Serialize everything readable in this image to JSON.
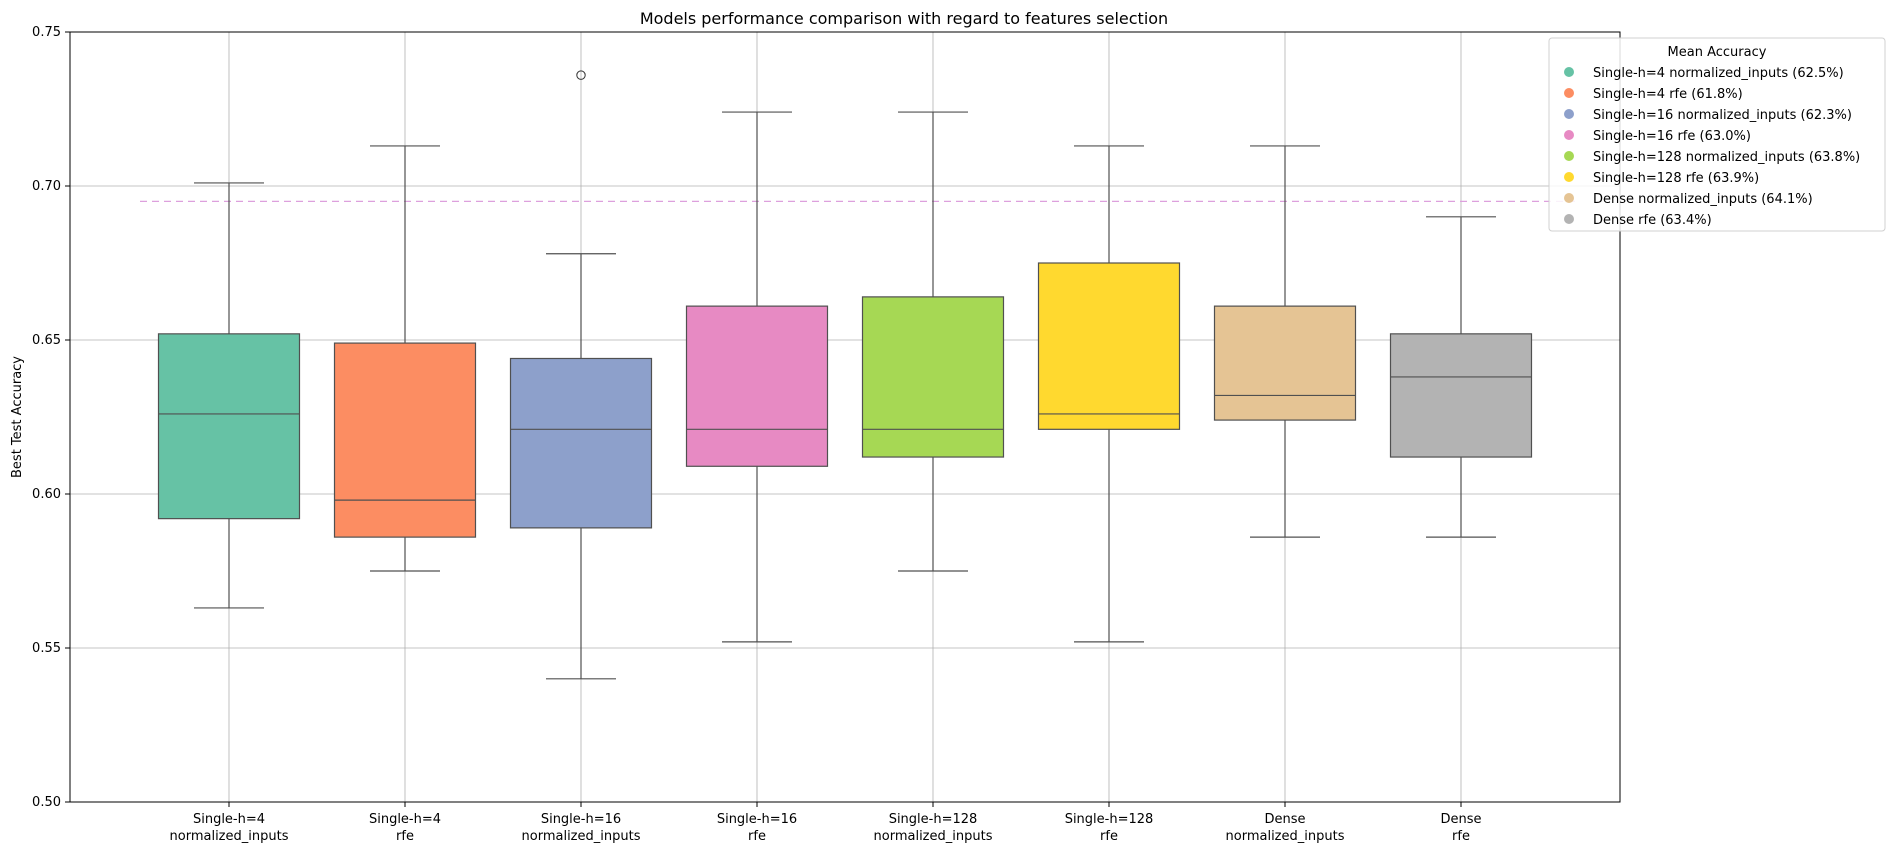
{
  "chart_data": {
    "type": "box",
    "title": "Models performance comparison with regard to features selection",
    "ylabel": "Best Test Accuracy",
    "xlabel": "",
    "ylim": [
      0.5,
      0.75
    ],
    "yticks": [
      "0.50",
      "0.55",
      "0.60",
      "0.65",
      "0.70",
      "0.75"
    ],
    "grid": true,
    "reference_line": {
      "y": 0.695,
      "color": "#dda0dd",
      "style": "dashed"
    },
    "categories": [
      [
        "Single-h=4",
        "normalized_inputs"
      ],
      [
        "Single-h=4",
        "rfe"
      ],
      [
        "Single-h=16",
        "normalized_inputs"
      ],
      [
        "Single-h=16",
        "rfe"
      ],
      [
        "Single-h=128",
        "normalized_inputs"
      ],
      [
        "Single-h=128",
        "rfe"
      ],
      [
        "Dense",
        "normalized_inputs"
      ],
      [
        "Dense",
        "rfe"
      ]
    ],
    "series": [
      {
        "whisker_low": 0.563,
        "q1": 0.592,
        "median": 0.626,
        "q3": 0.652,
        "whisker_high": 0.701,
        "outliers": [],
        "color": "#66c2a5"
      },
      {
        "whisker_low": 0.575,
        "q1": 0.586,
        "median": 0.598,
        "q3": 0.649,
        "whisker_high": 0.713,
        "outliers": [],
        "color": "#fc8d62"
      },
      {
        "whisker_low": 0.54,
        "q1": 0.589,
        "median": 0.621,
        "q3": 0.644,
        "whisker_high": 0.678,
        "outliers": [
          0.736
        ],
        "color": "#8da0cb"
      },
      {
        "whisker_low": 0.552,
        "q1": 0.609,
        "median": 0.621,
        "q3": 0.661,
        "whisker_high": 0.724,
        "outliers": [],
        "color": "#e78ac3"
      },
      {
        "whisker_low": 0.575,
        "q1": 0.612,
        "median": 0.621,
        "q3": 0.664,
        "whisker_high": 0.724,
        "outliers": [],
        "color": "#a6d854"
      },
      {
        "whisker_low": 0.552,
        "q1": 0.621,
        "median": 0.626,
        "q3": 0.675,
        "whisker_high": 0.713,
        "outliers": [],
        "color": "#ffd92f"
      },
      {
        "whisker_low": 0.586,
        "q1": 0.624,
        "median": 0.632,
        "q3": 0.661,
        "whisker_high": 0.713,
        "outliers": [],
        "color": "#e5c494"
      },
      {
        "whisker_low": 0.586,
        "q1": 0.612,
        "median": 0.638,
        "q3": 0.652,
        "whisker_high": 0.69,
        "outliers": [],
        "color": "#b3b3b3"
      }
    ],
    "legend": {
      "title": "Mean Accuracy",
      "position": "top-right",
      "entries": [
        {
          "label": "Single-h=4 normalized_inputs (62.5%)",
          "color": "#66c2a5"
        },
        {
          "label": "Single-h=4 rfe (61.8%)",
          "color": "#fc8d62"
        },
        {
          "label": "Single-h=16 normalized_inputs (62.3%)",
          "color": "#8da0cb"
        },
        {
          "label": "Single-h=16 rfe (63.0%)",
          "color": "#e78ac3"
        },
        {
          "label": "Single-h=128 normalized_inputs (63.8%)",
          "color": "#a6d854"
        },
        {
          "label": "Single-h=128 rfe (63.9%)",
          "color": "#ffd92f"
        },
        {
          "label": "Dense normalized_inputs (64.1%)",
          "color": "#e5c494"
        },
        {
          "label": "Dense rfe (63.4%)",
          "color": "#b3b3b3"
        }
      ]
    }
  }
}
